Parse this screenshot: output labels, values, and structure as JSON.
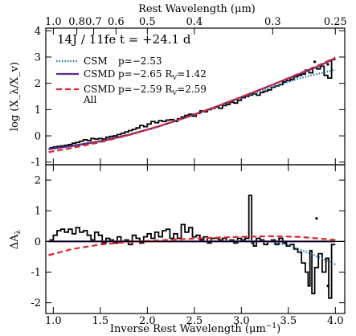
{
  "chart_data": {
    "type": "line",
    "top_axis": {
      "label": "Rest Wavelength (μm)",
      "tick_labels": [
        "1.0",
        "0.8",
        "0.7",
        "0.6",
        "0.5",
        "0.4",
        "0.3",
        "0.25"
      ],
      "tick_values_um": [
        1.0,
        0.8,
        0.7,
        0.6,
        0.5,
        0.4,
        0.3,
        0.25
      ]
    },
    "x_axis": {
      "label_main": "Inverse Rest Wavelength (μm",
      "label_sup": "−1",
      "label_close": ")",
      "tick_labels": [
        "1.0",
        "1.5",
        "2.0",
        "2.5",
        "3.0",
        "3.5",
        "4.0"
      ],
      "range": [
        0.92,
        4.1
      ]
    },
    "panels": [
      {
        "id": "top",
        "ylabel": "log (X_λ/X_v)",
        "ylim": [
          -1.1,
          4.1
        ],
        "yticks": [
          "-1",
          "0",
          "1",
          "2",
          "3",
          "4"
        ],
        "title": "14J / 11fe  t = +24.1 d",
        "legend": [
          {
            "label": "CSM",
            "extra": "",
            "params": "p=−2.53",
            "color": "#1f77b4",
            "dash": "dotted"
          },
          {
            "label": "CSMD",
            "extra": "",
            "params": "p=−2.65  R",
            "params_sub": "V",
            "params_tail": "=1.42",
            "color": "#5b2a86",
            "dash": "solid"
          },
          {
            "label": "CSMD",
            "extra": "All",
            "params": "p=−2.59  R",
            "params_sub": "V",
            "params_tail": "=2.59",
            "color": "#e3232c",
            "dash": "dashed"
          }
        ],
        "series": [
          {
            "name": "data",
            "color": "#000000",
            "style": "step",
            "x": [
              0.98,
              1.02,
              1.06,
              1.1,
              1.14,
              1.18,
              1.22,
              1.26,
              1.3,
              1.34,
              1.38,
              1.42,
              1.46,
              1.5,
              1.54,
              1.58,
              1.62,
              1.66,
              1.7,
              1.74,
              1.78,
              1.82,
              1.86,
              1.9,
              1.94,
              1.98,
              2.02,
              2.06,
              2.1,
              2.14,
              2.18,
              2.22,
              2.26,
              2.3,
              2.34,
              2.38,
              2.42,
              2.46,
              2.5,
              2.54,
              2.58,
              2.62,
              2.66,
              2.7,
              2.74,
              2.78,
              2.82,
              2.86,
              2.9,
              2.94,
              2.98,
              3.02,
              3.06,
              3.1,
              3.14,
              3.18,
              3.22,
              3.26,
              3.3,
              3.34,
              3.38,
              3.42,
              3.46,
              3.5,
              3.54,
              3.58,
              3.62,
              3.66,
              3.7,
              3.74,
              3.78,
              3.82,
              3.86,
              3.9,
              3.94,
              3.98
            ],
            "y": [
              -0.45,
              -0.42,
              -0.4,
              -0.38,
              -0.36,
              -0.33,
              -0.28,
              -0.25,
              -0.2,
              -0.15,
              -0.18,
              -0.1,
              -0.12,
              -0.1,
              -0.12,
              -0.05,
              -0.02,
              0.0,
              0.05,
              0.1,
              0.15,
              0.2,
              0.25,
              0.3,
              0.4,
              0.35,
              0.45,
              0.55,
              0.5,
              0.58,
              0.55,
              0.6,
              0.62,
              0.55,
              0.65,
              0.72,
              0.78,
              0.82,
              0.75,
              0.85,
              0.95,
              0.92,
              1.0,
              1.05,
              1.1,
              1.05,
              1.15,
              1.2,
              1.28,
              1.25,
              1.35,
              1.45,
              1.5,
              1.55,
              1.6,
              1.55,
              1.65,
              1.7,
              1.75,
              1.85,
              1.9,
              1.95,
              2.05,
              2.1,
              2.15,
              2.25,
              2.3,
              2.35,
              2.5,
              2.4,
              2.6,
              2.55,
              2.65,
              2.3,
              2.2,
              2.9
            ]
          },
          {
            "name": "CSM",
            "color": "#1f77b4",
            "style": "dotted",
            "x": [
              0.95,
              1.2,
              1.5,
              1.8,
              2.1,
              2.4,
              2.7,
              3.0,
              3.3,
              3.6,
              3.8,
              4.0
            ],
            "y": [
              -0.52,
              -0.4,
              -0.22,
              0.03,
              0.33,
              0.68,
              1.06,
              1.45,
              1.82,
              2.17,
              2.35,
              2.52
            ]
          },
          {
            "name": "CSMD",
            "color": "#5b2a86",
            "style": "solid",
            "x": [
              0.95,
              1.2,
              1.5,
              1.8,
              2.1,
              2.4,
              2.7,
              3.0,
              3.3,
              3.6,
              3.8,
              4.0
            ],
            "y": [
              -0.5,
              -0.38,
              -0.2,
              0.04,
              0.34,
              0.69,
              1.07,
              1.48,
              1.9,
              2.33,
              2.62,
              2.95
            ]
          },
          {
            "name": "CSMD All",
            "color": "#e3232c",
            "style": "dashed",
            "x": [
              0.95,
              1.2,
              1.5,
              1.8,
              2.1,
              2.4,
              2.7,
              3.0,
              3.3,
              3.6,
              3.8,
              4.0
            ],
            "y": [
              -0.62,
              -0.46,
              -0.24,
              0.03,
              0.34,
              0.69,
              1.07,
              1.48,
              1.9,
              2.35,
              2.65,
              2.98
            ]
          }
        ],
        "points": [
          {
            "x": 3.78,
            "y": 2.82
          },
          {
            "x": 3.92,
            "y": 2.72
          }
        ]
      },
      {
        "id": "bottom",
        "ylabel": "ΔA",
        "ylabel_sub": "λ",
        "ylim": [
          -2.35,
          2.5
        ],
        "yticks": [
          "-2",
          "-1",
          "0",
          "1",
          "2"
        ],
        "series": [
          {
            "name": "data residual",
            "color": "#000000",
            "style": "step",
            "x": [
              0.98,
              1.02,
              1.06,
              1.1,
              1.14,
              1.18,
              1.22,
              1.26,
              1.3,
              1.34,
              1.38,
              1.42,
              1.46,
              1.5,
              1.54,
              1.58,
              1.62,
              1.66,
              1.7,
              1.74,
              1.78,
              1.82,
              1.86,
              1.9,
              1.94,
              1.98,
              2.02,
              2.06,
              2.1,
              2.14,
              2.18,
              2.22,
              2.26,
              2.3,
              2.34,
              2.38,
              2.42,
              2.46,
              2.5,
              2.54,
              2.58,
              2.62,
              2.66,
              2.7,
              2.74,
              2.78,
              2.82,
              2.86,
              2.9,
              2.94,
              2.98,
              3.02,
              3.06,
              3.1,
              3.12,
              3.14,
              3.18,
              3.22,
              3.26,
              3.3,
              3.34,
              3.38,
              3.42,
              3.46,
              3.5,
              3.54,
              3.58,
              3.62,
              3.66,
              3.7,
              3.72,
              3.74,
              3.76,
              3.8,
              3.84,
              3.88,
              3.92,
              3.94,
              3.98
            ],
            "y": [
              0.05,
              0.2,
              0.35,
              0.4,
              0.3,
              0.4,
              0.25,
              0.45,
              0.3,
              0.35,
              0.2,
              0.05,
              0.3,
              0.2,
              -0.05,
              0.1,
              0.05,
              -0.05,
              0.15,
              0.0,
              0.05,
              -0.1,
              0.2,
              0.1,
              -0.05,
              0.15,
              0.25,
              0.1,
              0.3,
              0.15,
              0.35,
              0.4,
              0.1,
              0.25,
              0.1,
              0.55,
              0.3,
              0.45,
              0.15,
              0.2,
              0.05,
              0.15,
              -0.05,
              0.1,
              0.1,
              0.05,
              0.1,
              0.0,
              0.05,
              -0.05,
              0.1,
              0.05,
              0.1,
              1.5,
              -0.05,
              -0.15,
              0.1,
              0.05,
              -0.1,
              0.0,
              0.05,
              -0.1,
              0.1,
              -0.05,
              -0.15,
              -0.1,
              -0.25,
              -0.35,
              -0.7,
              -1.0,
              -1.45,
              -0.3,
              -1.7,
              -0.85,
              -0.4,
              -1.0,
              -0.55,
              -1.85,
              -0.1
            ]
          },
          {
            "name": "CSM",
            "color": "#1f77b4",
            "style": "dotted",
            "x": [
              0.95,
              1.2,
              1.5,
              1.8,
              2.1,
              2.4,
              2.7,
              3.0,
              3.3,
              3.5,
              3.7,
              3.85,
              4.0
            ],
            "y": [
              0.0,
              0.0,
              0.0,
              0.0,
              0.0,
              0.0,
              0.01,
              0.02,
              0.0,
              -0.12,
              -0.35,
              -0.55,
              -0.75
            ]
          },
          {
            "name": "CSMD",
            "color": "#5b2a86",
            "style": "solid",
            "x": [
              0.95,
              1.2,
              1.5,
              1.8,
              2.1,
              2.4,
              2.7,
              3.0,
              3.3,
              3.6,
              3.8,
              4.0
            ],
            "y": [
              0.0,
              0.0,
              0.0,
              0.0,
              0.0,
              0.0,
              0.0,
              0.0,
              0.0,
              0.0,
              0.0,
              0.0
            ]
          },
          {
            "name": "CSMD All",
            "color": "#e3232c",
            "style": "dashed",
            "x": [
              0.95,
              1.2,
              1.5,
              1.8,
              2.1,
              2.4,
              2.7,
              3.0,
              3.3,
              3.6,
              3.8,
              4.0
            ],
            "y": [
              -0.45,
              -0.25,
              -0.1,
              -0.02,
              0.03,
              0.08,
              0.12,
              0.15,
              0.17,
              0.15,
              0.1,
              0.05
            ]
          },
          {
            "name": "zero",
            "color": "#000000",
            "style": "solid",
            "x": [
              0.92,
              4.1
            ],
            "y": [
              0,
              0
            ]
          }
        ],
        "points": [
          {
            "x": 3.8,
            "y": 0.75
          },
          {
            "x": 3.92,
            "y": -1.45
          }
        ]
      }
    ]
  }
}
